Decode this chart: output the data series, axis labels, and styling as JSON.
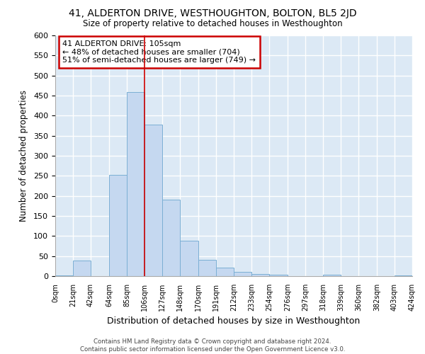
{
  "title": "41, ALDERTON DRIVE, WESTHOUGHTON, BOLTON, BL5 2JD",
  "subtitle": "Size of property relative to detached houses in Westhoughton",
  "xlabel": "Distribution of detached houses by size in Westhoughton",
  "ylabel": "Number of detached properties",
  "bin_edges": [
    0,
    21,
    42,
    64,
    85,
    106,
    127,
    148,
    170,
    191,
    212,
    233,
    254,
    276,
    297,
    318,
    339,
    360,
    382,
    403,
    424
  ],
  "bin_labels": [
    "0sqm",
    "21sqm",
    "42sqm",
    "64sqm",
    "85sqm",
    "106sqm",
    "127sqm",
    "148sqm",
    "170sqm",
    "191sqm",
    "212sqm",
    "233sqm",
    "254sqm",
    "276sqm",
    "297sqm",
    "318sqm",
    "339sqm",
    "360sqm",
    "382sqm",
    "403sqm",
    "424sqm"
  ],
  "counts": [
    2,
    38,
    0,
    252,
    458,
    378,
    190,
    88,
    40,
    22,
    10,
    5,
    4,
    0,
    0,
    3,
    0,
    0,
    0,
    2
  ],
  "bar_color": "#c5d8f0",
  "bar_edge_color": "#7bafd4",
  "property_line_x": 106,
  "annotation_text": "41 ALDERTON DRIVE: 105sqm\n← 48% of detached houses are smaller (704)\n51% of semi-detached houses are larger (749) →",
  "annotation_box_color": "#ffffff",
  "annotation_border_color": "#cc0000",
  "vline_color": "#cc0000",
  "background_color": "#dce9f5",
  "grid_color": "#ffffff",
  "fig_background": "#ffffff",
  "footer_line1": "Contains HM Land Registry data © Crown copyright and database right 2024.",
  "footer_line2": "Contains public sector information licensed under the Open Government Licence v3.0.",
  "ylim": [
    0,
    600
  ],
  "yticks": [
    0,
    50,
    100,
    150,
    200,
    250,
    300,
    350,
    400,
    450,
    500,
    550,
    600
  ]
}
